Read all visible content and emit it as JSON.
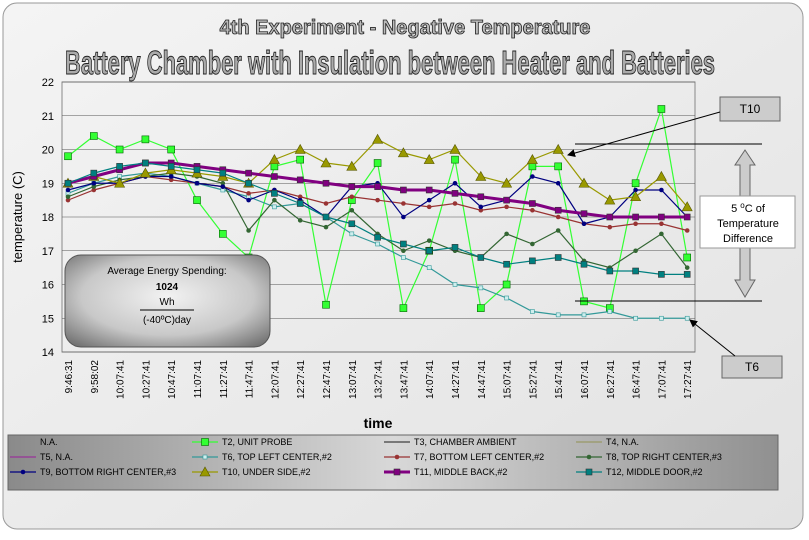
{
  "chart_data": {
    "type": "line",
    "title": "4th Experiment - Negative Temperature",
    "subtitle": "Battery Chamber with Insulation between Heater and Batteries",
    "ylabel": "temperature (C)",
    "xlabel": "time",
    "ylim": [
      14,
      22
    ],
    "yticks": [
      14,
      15,
      16,
      17,
      18,
      19,
      20,
      21,
      22
    ],
    "grid": true,
    "categories": [
      "9:46:31",
      "9:58:02",
      "10:07:41",
      "10:27:41",
      "10:47:41",
      "11:07:41",
      "11:27:41",
      "11:47:41",
      "12:07:41",
      "12:27:41",
      "12:47:41",
      "13:07:41",
      "13:27:41",
      "13:47:41",
      "14:07:41",
      "14:27:41",
      "14:47:41",
      "15:07:41",
      "15:27:41",
      "15:47:41",
      "16:07:41",
      "16:27:41",
      "16:47:41",
      "17:07:41",
      "17:27:41"
    ],
    "series": [
      {
        "name": "N.A.",
        "color": "#808080",
        "marker": "none",
        "values": [
          null,
          null,
          null,
          null,
          null,
          null,
          null,
          null,
          null,
          null,
          null,
          null,
          null,
          null,
          null,
          null,
          null,
          null,
          null,
          null,
          null,
          null,
          null,
          null,
          null
        ]
      },
      {
        "name": "T2, UNIT PROBE",
        "color": "#33ff33",
        "marker": "square-big",
        "values": [
          19.8,
          20.4,
          20.0,
          20.3,
          20.0,
          18.5,
          17.5,
          16.8,
          19.5,
          19.7,
          15.4,
          18.5,
          19.6,
          15.3,
          17.0,
          19.7,
          15.3,
          16.0,
          19.5,
          19.5,
          15.5,
          15.3,
          19.0,
          21.2,
          16.8
        ]
      },
      {
        "name": "T3, CHAMBER AMBIENT",
        "color": "#404040",
        "marker": "none",
        "values": [
          null,
          null,
          null,
          null,
          null,
          null,
          null,
          null,
          null,
          null,
          null,
          null,
          null,
          null,
          null,
          null,
          null,
          null,
          null,
          null,
          null,
          null,
          null,
          null,
          null
        ]
      },
      {
        "name": "T4, N.A.",
        "color": "#999966",
        "marker": "none",
        "values": [
          null,
          null,
          null,
          null,
          null,
          null,
          null,
          null,
          null,
          null,
          null,
          null,
          null,
          null,
          null,
          null,
          null,
          null,
          null,
          null,
          null,
          null,
          null,
          null,
          null
        ]
      },
      {
        "name": "T5, N.A.",
        "color": "#993399",
        "marker": "none",
        "values": [
          null,
          null,
          null,
          null,
          null,
          null,
          null,
          null,
          null,
          null,
          null,
          null,
          null,
          null,
          null,
          null,
          null,
          null,
          null,
          null,
          null,
          null,
          null,
          null,
          null
        ]
      },
      {
        "name": "T6, TOP LEFT CENTER,#2",
        "color": "#339999",
        "marker": "square-small",
        "values": [
          18.7,
          19.0,
          19.2,
          19.3,
          19.2,
          19.0,
          18.8,
          18.6,
          18.3,
          18.4,
          18.0,
          17.5,
          17.2,
          16.8,
          16.5,
          16.0,
          15.9,
          15.6,
          15.2,
          15.1,
          15.1,
          15.2,
          15.0,
          15.0,
          15.0
        ]
      },
      {
        "name": "T7, BOTTOM LEFT CENTER,#2",
        "color": "#993333",
        "marker": "dot",
        "values": [
          18.5,
          18.8,
          19.0,
          19.2,
          19.1,
          19.0,
          18.9,
          18.7,
          18.8,
          18.6,
          18.4,
          18.6,
          18.5,
          18.4,
          18.3,
          18.4,
          18.2,
          18.3,
          18.2,
          18.0,
          17.8,
          17.7,
          17.8,
          17.8,
          17.6
        ]
      },
      {
        "name": "T8, TOP RIGHT CENTER,#3",
        "color": "#336633",
        "marker": "dot",
        "values": [
          18.6,
          18.9,
          19.1,
          19.2,
          19.3,
          19.2,
          19.0,
          17.6,
          18.5,
          17.9,
          17.7,
          18.2,
          17.5,
          17.0,
          17.3,
          17.0,
          16.8,
          17.5,
          17.2,
          17.6,
          16.7,
          16.5,
          17.0,
          17.5,
          16.5
        ]
      },
      {
        "name": "T9, BOTTOM RIGHT CENTER,#3",
        "color": "#000080",
        "marker": "dot",
        "values": [
          18.8,
          19.0,
          19.0,
          19.2,
          19.2,
          19.0,
          18.9,
          18.5,
          18.8,
          18.5,
          18.0,
          18.9,
          19.0,
          18.0,
          18.5,
          19.0,
          18.3,
          18.5,
          19.2,
          19.0,
          17.8,
          18.0,
          18.8,
          18.8,
          18.0
        ]
      },
      {
        "name": "T10, UNDER SIDE,#2",
        "color": "#999900",
        "marker": "triangle",
        "values": [
          19.0,
          19.2,
          19.0,
          19.3,
          19.4,
          19.3,
          19.2,
          19.0,
          19.7,
          20.0,
          19.6,
          19.5,
          20.3,
          19.9,
          19.7,
          20.0,
          19.2,
          19.0,
          19.7,
          20.0,
          19.0,
          18.5,
          18.6,
          19.2,
          18.3
        ]
      },
      {
        "name": "T11, MIDDLE BACK,#2",
        "color": "#800080",
        "marker": "square",
        "values": [
          19.0,
          19.2,
          19.4,
          19.6,
          19.6,
          19.5,
          19.4,
          19.3,
          19.2,
          19.1,
          19.0,
          18.9,
          18.9,
          18.8,
          18.8,
          18.7,
          18.6,
          18.5,
          18.4,
          18.2,
          18.1,
          18.0,
          18.0,
          18.0,
          18.0
        ]
      },
      {
        "name": "T12, MIDDLE DOOR,#2",
        "color": "#008080",
        "marker": "square",
        "values": [
          19.0,
          19.3,
          19.5,
          19.6,
          19.5,
          19.4,
          19.3,
          19.0,
          18.7,
          18.4,
          18.0,
          17.8,
          17.4,
          17.2,
          17.0,
          17.1,
          16.8,
          16.6,
          16.7,
          16.8,
          16.6,
          16.4,
          16.4,
          16.3,
          16.3
        ]
      }
    ],
    "annotations": {
      "t10": "T10",
      "t6": "T6",
      "diff_num": "5 ",
      "diff_sup": "o",
      "diff_unit": "C of",
      "diff_line2": "Temperature",
      "diff_line3": "Difference",
      "energy_title": "Average Energy Spending:",
      "energy_value": 1024,
      "energy_unit": "Wh",
      "energy_per": "(-40ºC)day"
    }
  }
}
